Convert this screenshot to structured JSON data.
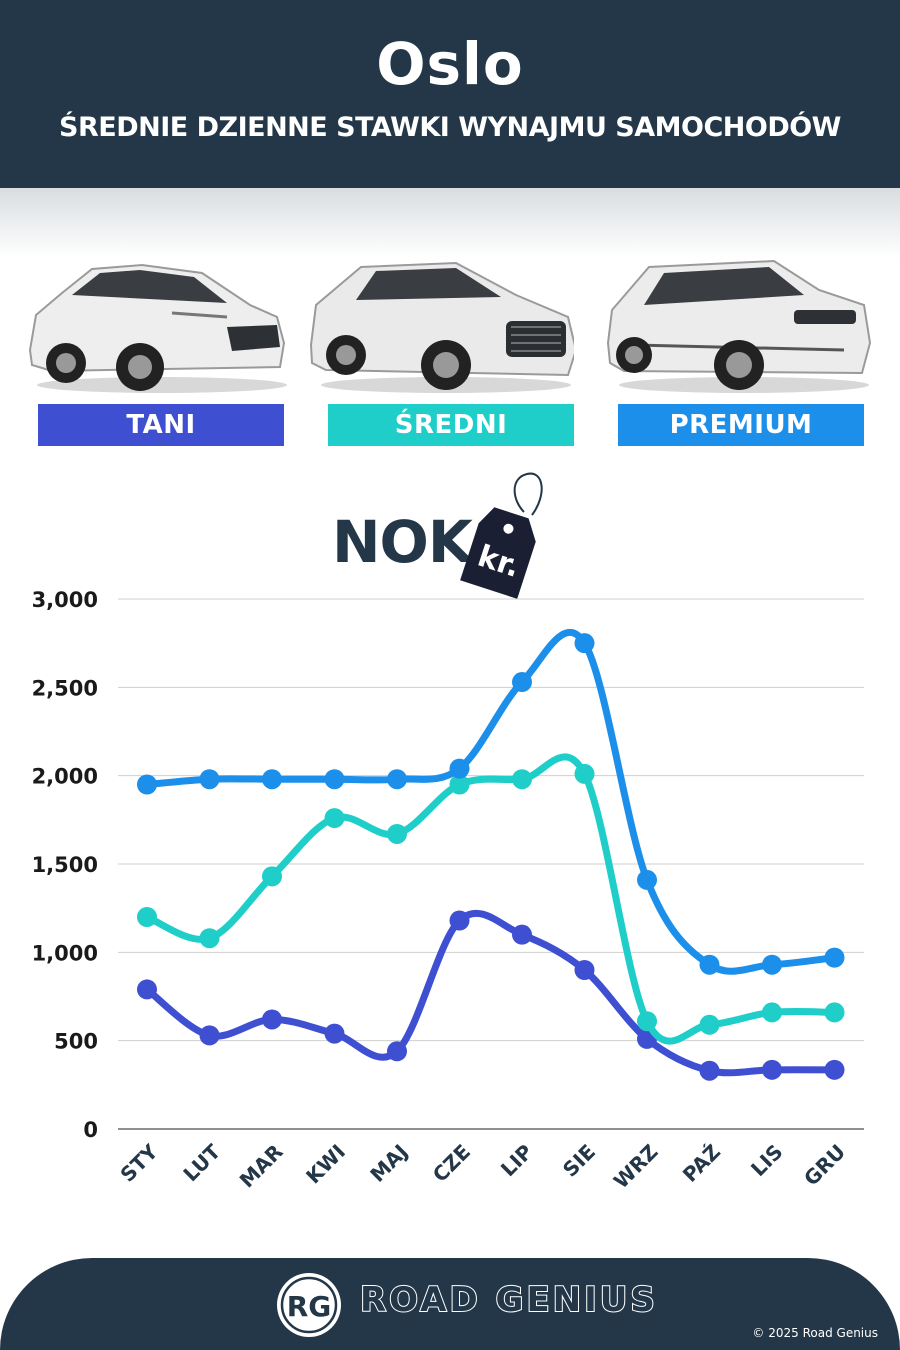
{
  "header": {
    "city": "Oslo",
    "subtitle": "ŚREDNIE DZIENNE STAWKI WYNAJMU SAMOCHODÓW"
  },
  "categories": [
    {
      "label": "TANI",
      "color": "#3e4fd1"
    },
    {
      "label": "ŚREDNI",
      "color": "#1fcec8"
    },
    {
      "label": "PREMIUM",
      "color": "#1c8fea"
    }
  ],
  "currency": {
    "code": "NOK",
    "tag_text": "kr."
  },
  "chart_data": {
    "type": "line",
    "title": "",
    "xlabel": "",
    "ylabel": "",
    "ylim": [
      0,
      3000
    ],
    "yticks": [
      0,
      500,
      1000,
      1500,
      2000,
      2500,
      3000
    ],
    "ytick_labels": [
      "0",
      "500",
      "1,000",
      "1,500",
      "2,000",
      "2,500",
      "3,000"
    ],
    "grid": true,
    "categories": [
      "STY",
      "LUT",
      "MAR",
      "KWI",
      "MAJ",
      "CZE",
      "LIP",
      "SIE",
      "WRZ",
      "PAŹ",
      "LIS",
      "GRU"
    ],
    "series": [
      {
        "color": "#3e4fd1",
        "values": [
          790,
          530,
          620,
          540,
          440,
          1180,
          1100,
          900,
          510,
          330,
          335,
          335
        ]
      },
      {
        "color": "#1fcec8",
        "values": [
          1200,
          1080,
          1430,
          1760,
          1670,
          1950,
          1980,
          2010,
          610,
          590,
          660,
          660
        ]
      },
      {
        "color": "#1c8fea",
        "values": [
          1950,
          1980,
          1980,
          1980,
          1980,
          2040,
          2530,
          2750,
          1410,
          930,
          930,
          970
        ]
      }
    ]
  },
  "footer": {
    "logo_text": "RG",
    "brand": "ROAD GENIUS",
    "copyright": "© 2025 Road Genius"
  }
}
